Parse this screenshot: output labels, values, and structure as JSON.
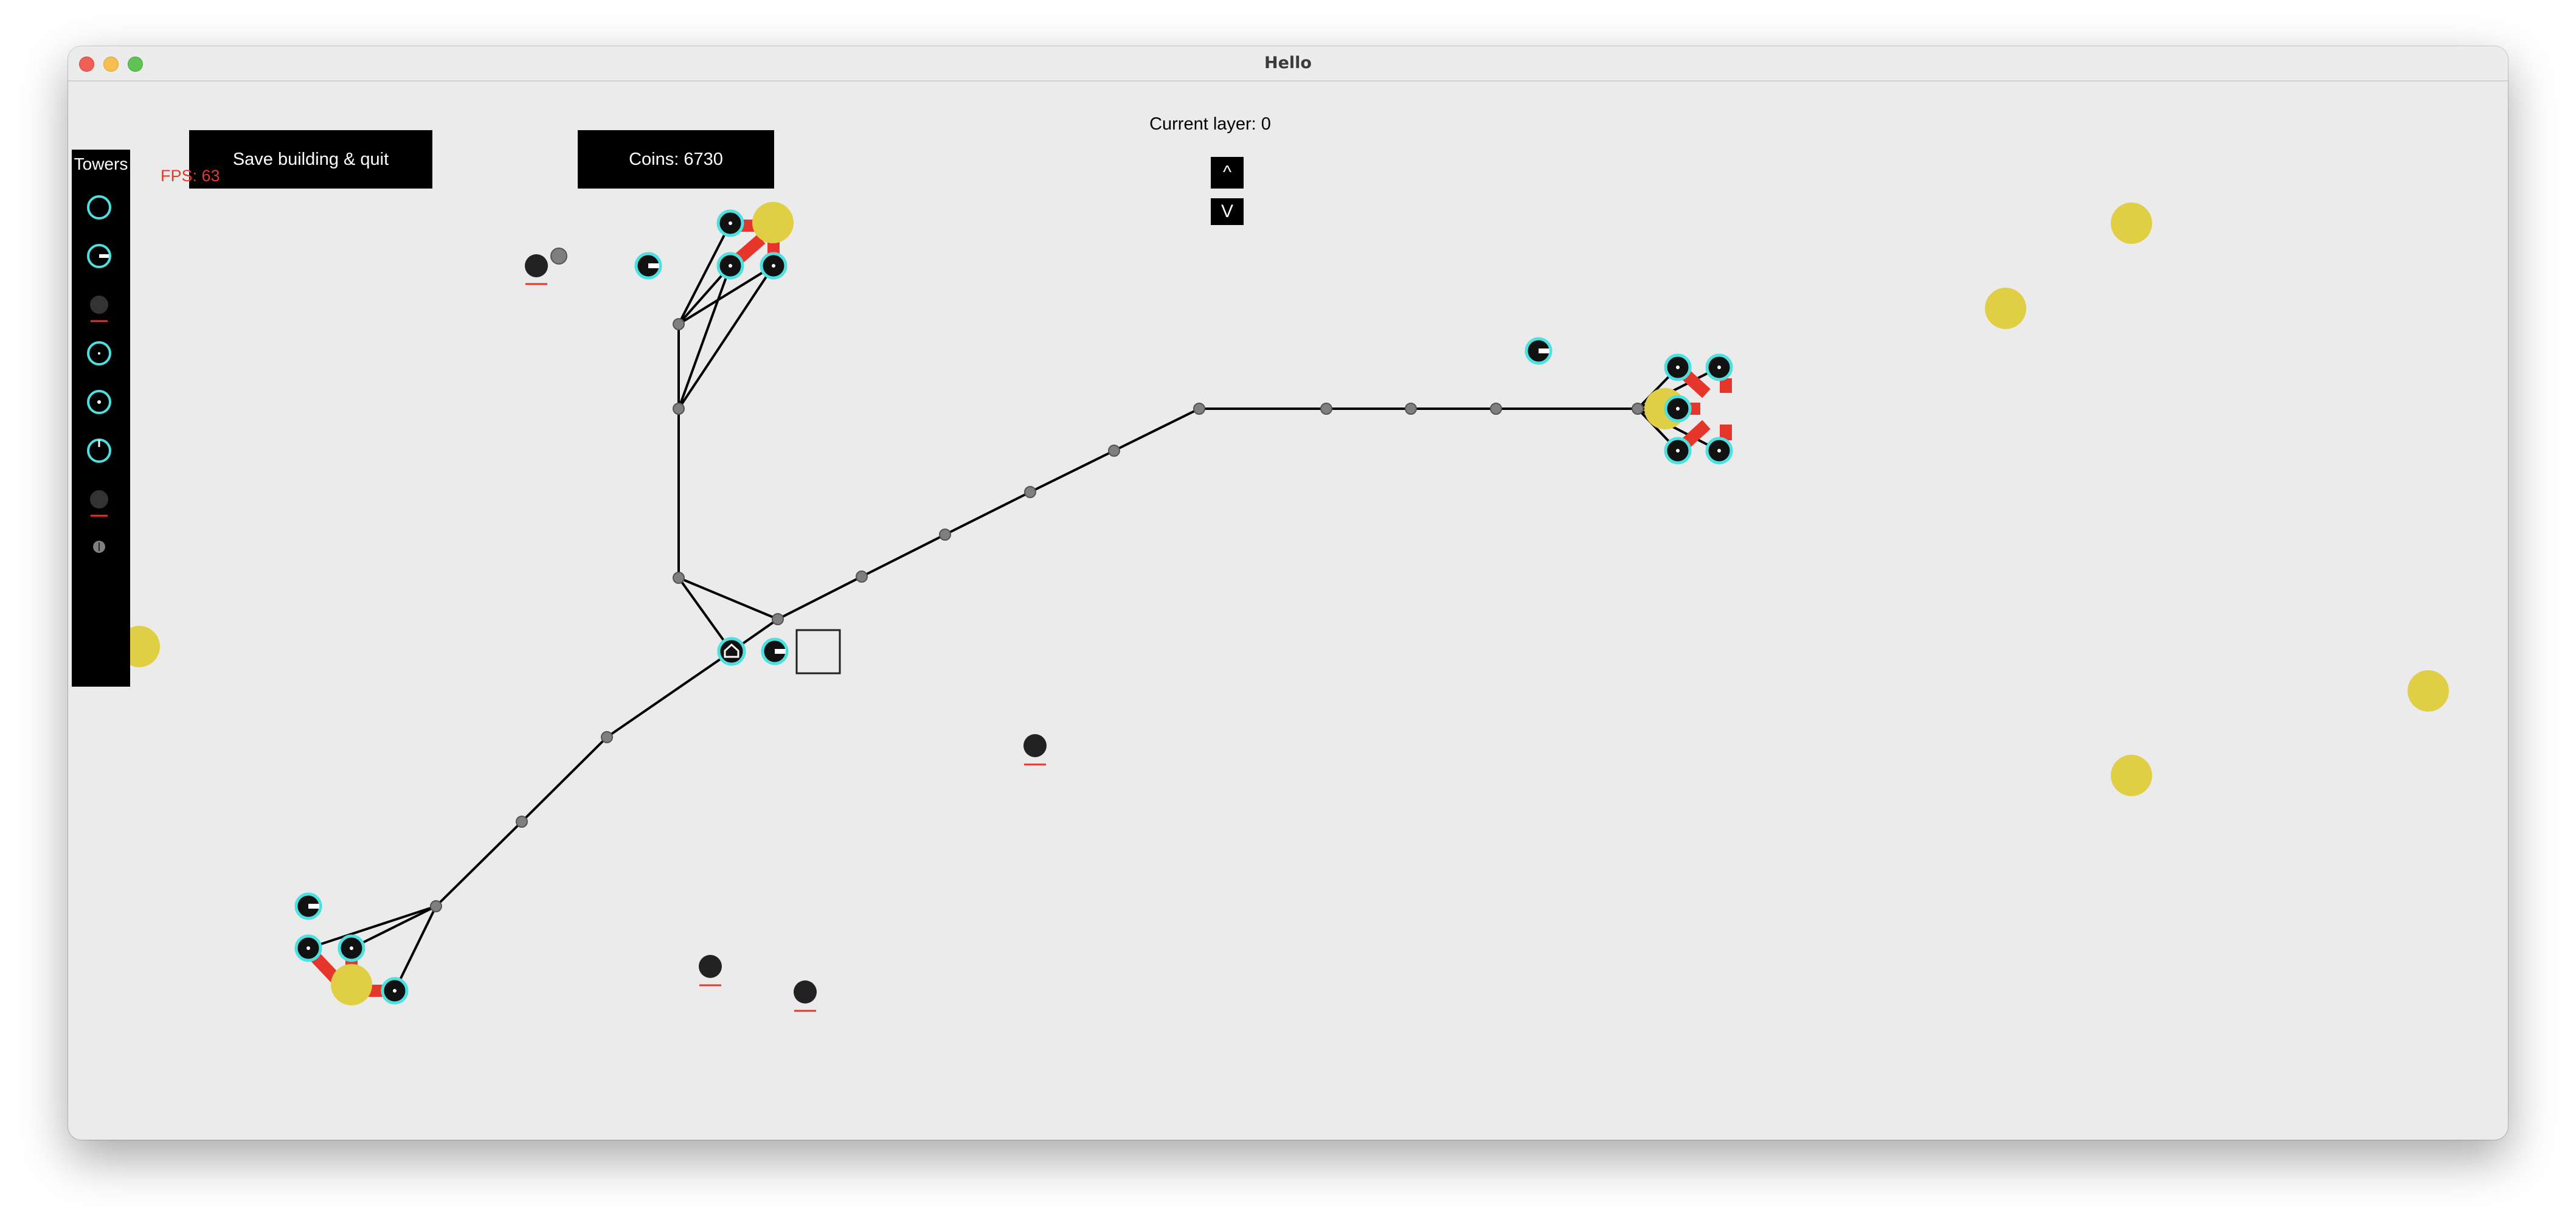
{
  "window": {
    "title": "Hello"
  },
  "toolbar": {
    "save_label": "Save building & quit",
    "coins_label": "Coins: 6730"
  },
  "layer": {
    "label": "Current layer: 0",
    "up_label": "^",
    "down_label": "V"
  },
  "towers_panel": {
    "title": "Towers",
    "items": [
      "ring-tower",
      "gun-tower",
      "bomb-tower",
      "dot-tower",
      "center-dot-tower",
      "notched-tower",
      "bomb-tower-alt",
      "node-tower"
    ]
  },
  "hud": {
    "fps": "FPS: 63"
  },
  "colors": {
    "background": "#ebebeb",
    "wire": "#000000",
    "tower_ring": "#4ce0e0",
    "tower_body": "#111111",
    "resource": "#e0cf45",
    "conveyor": "#e6362b",
    "node": "#808080",
    "fps_text": "#e23a2f"
  }
}
